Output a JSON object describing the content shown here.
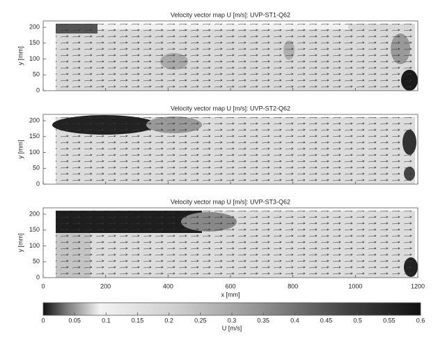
{
  "chart_data": [
    {
      "type": "vector-map",
      "title": "Velocity vector map U [m/s]: UVP-ST1-Q62",
      "ylabel": "y [mm]",
      "xlim": [
        0,
        1200
      ],
      "xticks": [
        0,
        200,
        400,
        600,
        800,
        1000,
        1200
      ],
      "ylim": [
        0,
        220
      ],
      "yticks": [
        0,
        50,
        100,
        150,
        200
      ]
    },
    {
      "type": "vector-map",
      "title": "Velocity vector map U [m/s]: UVP-ST2-Q62",
      "ylabel": "y [mm]",
      "xlim": [
        0,
        1200
      ],
      "xticks": [
        0,
        200,
        400,
        600,
        800,
        1000,
        1200
      ],
      "ylim": [
        0,
        220
      ],
      "yticks": [
        0,
        50,
        100,
        150,
        200
      ]
    },
    {
      "type": "vector-map",
      "title": "Velocity vector map U [m/s]: UVP-ST3-Q62",
      "ylabel": "y [mm]",
      "xlabel": "x [mm]",
      "xlim": [
        0,
        1200
      ],
      "xticks": [
        0,
        200,
        400,
        600,
        800,
        1000,
        1200
      ],
      "ylim": [
        0,
        220
      ],
      "yticks": [
        0,
        50,
        100,
        150,
        200
      ]
    }
  ],
  "colorbar": {
    "label": "U [m/s]",
    "lim": [
      0,
      0.6
    ],
    "ticks": [
      0,
      0.05,
      0.1,
      0.15,
      0.2,
      0.25,
      0.3,
      0.35,
      0.4,
      0.45,
      0.5,
      0.55,
      0.6
    ]
  }
}
